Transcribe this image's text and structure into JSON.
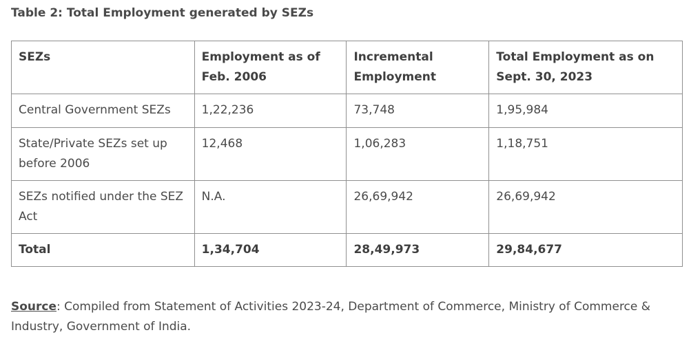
{
  "table": {
    "caption": "Table 2: Total Employment generated by SEZs",
    "headers": [
      "SEZs",
      "Employment as of Feb. 2006",
      "Incremental Employment",
      "Total Employment as on Sept. 30, 2023"
    ],
    "rows": [
      [
        "Central Government SEZs",
        "1,22,236",
        "73,748",
        "1,95,984"
      ],
      [
        "State/Private SEZs set up before 2006",
        "12,468",
        "1,06,283",
        "1,18,751"
      ],
      [
        "SEZs notified under the SEZ Act",
        "N.A.",
        "26,69,942",
        "26,69,942"
      ],
      [
        "Total",
        "1,34,704",
        "28,49,973",
        "29,84,677"
      ]
    ]
  },
  "source": {
    "label": "Source",
    "text": ": Compiled from Statement of Activities 2023-24, Department of Commerce, Ministry of Commerce & Industry, Government of India."
  }
}
